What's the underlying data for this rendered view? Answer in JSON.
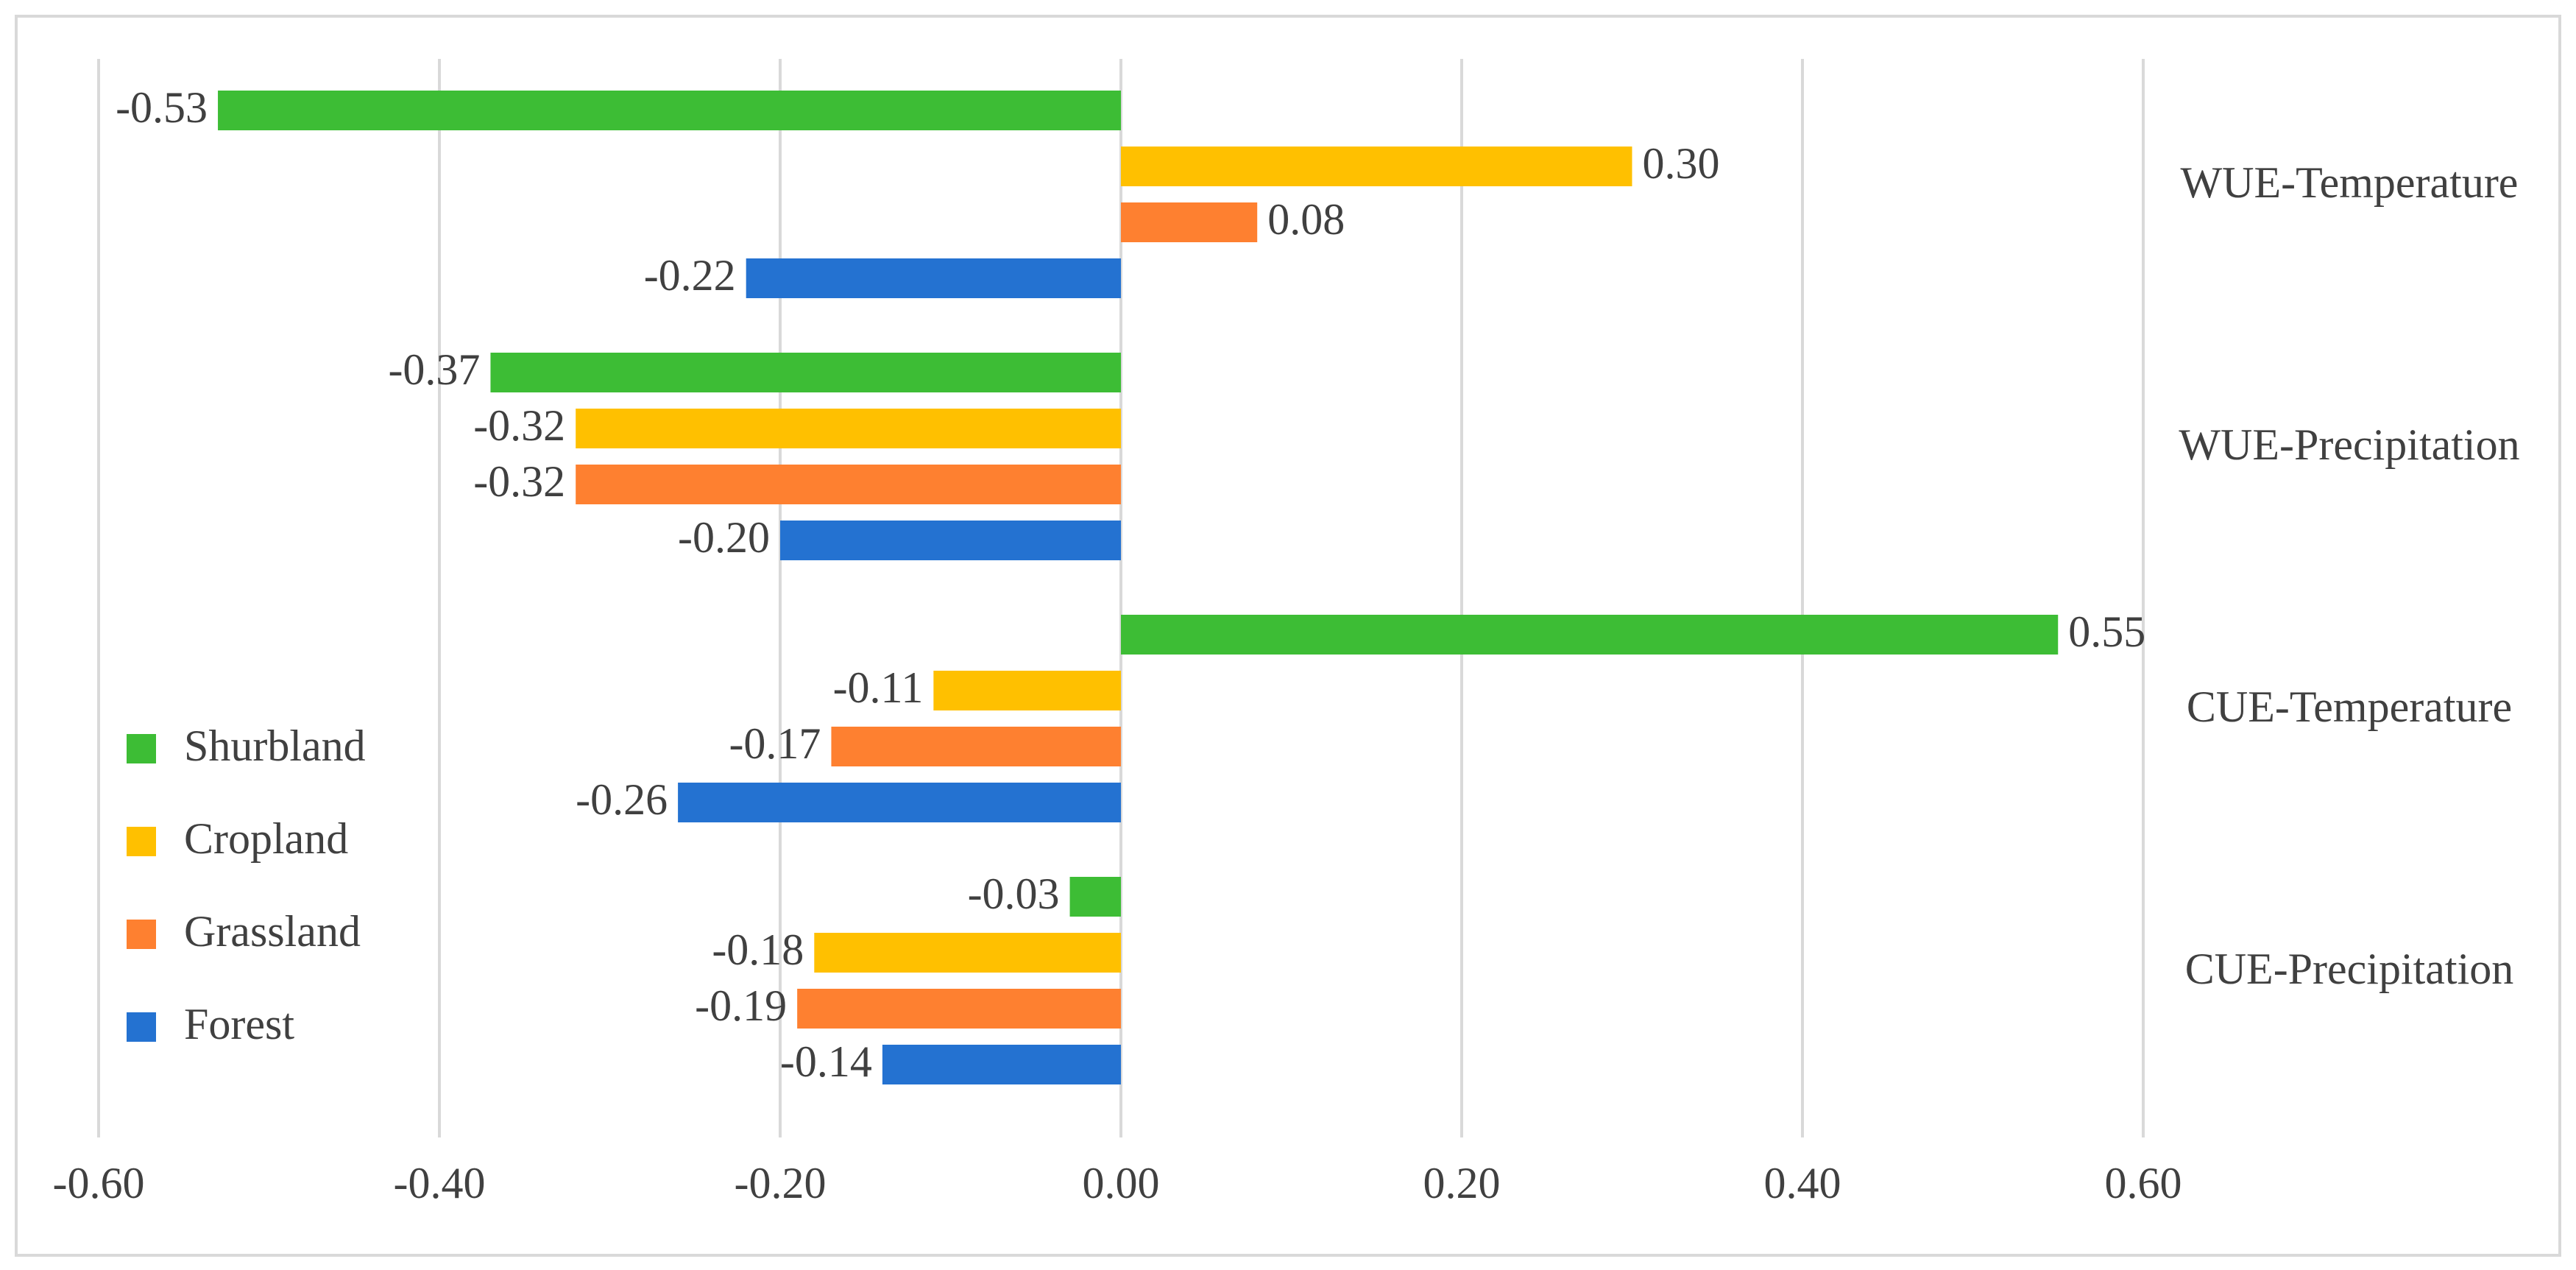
{
  "chart_data": {
    "type": "hbar",
    "categories": [
      "WUE-Temperature",
      "WUE-Precipitation",
      "CUE-Temperature",
      "CUE-Precipitation"
    ],
    "series": [
      {
        "name": "Shurbland",
        "color": "#3dbd35",
        "values": [
          -0.53,
          -0.37,
          0.55,
          -0.03
        ],
        "value_labels": [
          "-0.53",
          "-0.37",
          "0.55",
          "-0.03"
        ]
      },
      {
        "name": "Cropland",
        "color": "#ffc000",
        "values": [
          0.3,
          -0.32,
          -0.11,
          -0.18
        ],
        "value_labels": [
          "0.30",
          "-0.32",
          "-0.11",
          "-0.18"
        ]
      },
      {
        "name": "Grassland",
        "color": "#fe8030",
        "values": [
          0.08,
          -0.32,
          -0.17,
          -0.19
        ],
        "value_labels": [
          "0.08",
          "-0.32",
          "-0.17",
          "-0.19"
        ]
      },
      {
        "name": "Forest",
        "color": "#2472d1",
        "values": [
          -0.22,
          -0.2,
          -0.26,
          -0.14
        ],
        "value_labels": [
          "-0.22",
          "-0.20",
          "-0.26",
          "-0.14"
        ]
      }
    ],
    "xlim": [
      -0.6,
      0.6
    ],
    "xticks": [
      {
        "value": -0.6,
        "label": "-0.60"
      },
      {
        "value": -0.4,
        "label": "-0.40"
      },
      {
        "value": -0.2,
        "label": "-0.20"
      },
      {
        "value": 0,
        "label": "0.00"
      },
      {
        "value": 0.2,
        "label": "0.20"
      },
      {
        "value": 0.4,
        "label": "0.40"
      },
      {
        "value": 0.6,
        "label": "0.60"
      }
    ],
    "grid": true,
    "legend": "lower-left"
  }
}
